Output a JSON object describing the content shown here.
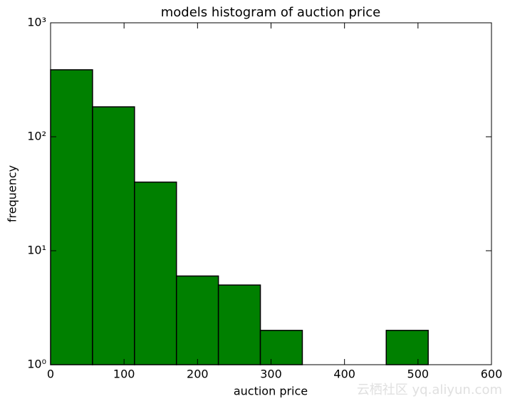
{
  "chart_data": {
    "type": "histogram",
    "title": "models histogram of auction price",
    "xlabel": "auction price",
    "ylabel": "frequency",
    "bins": [
      0,
      57.1,
      114.2,
      171.3,
      228.4,
      285.5,
      342.6,
      399.7,
      456.8,
      513.9,
      571
    ],
    "values": [
      387,
      183,
      40,
      6,
      5,
      2,
      0,
      0,
      2,
      1
    ],
    "color": "#008000",
    "xlim": [
      0,
      600
    ],
    "xticks": [
      0,
      100,
      200,
      300,
      400,
      500,
      600
    ],
    "ylim": [
      1,
      1000
    ],
    "log_y": true,
    "yticks": [
      {
        "value": 1,
        "label": "10⁰"
      },
      {
        "value": 10,
        "label": "10¹"
      },
      {
        "value": 100,
        "label": "10²"
      },
      {
        "value": 1000,
        "label": "10³"
      }
    ],
    "watermark": "云栖社区 yq.aliyun.com"
  }
}
